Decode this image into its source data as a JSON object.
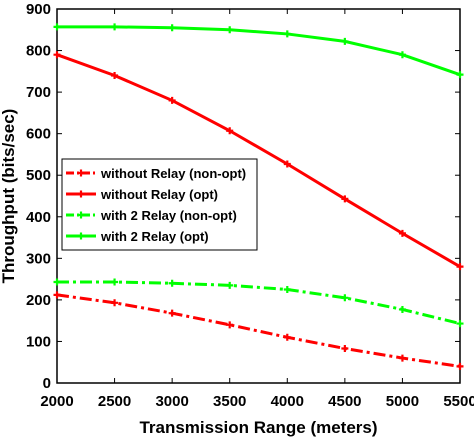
{
  "chart_data": {
    "type": "line",
    "xlabel": "Transmission Range (meters)",
    "ylabel": "Throughput (bits/sec)",
    "xlim": [
      2000,
      5500
    ],
    "ylim": [
      0,
      900
    ],
    "xticks": [
      "2000",
      "2500",
      "3000",
      "3500",
      "4000",
      "4500",
      "5000",
      "5500"
    ],
    "yticks": [
      "0",
      "100",
      "200",
      "300",
      "400",
      "500",
      "600",
      "700",
      "800",
      "900"
    ],
    "grid": false,
    "legend_position": "left",
    "x": [
      2000,
      2500,
      3000,
      3500,
      4000,
      4500,
      5000,
      5500
    ],
    "series": [
      {
        "name": "without Relay (non-opt)",
        "color": "#ff0000",
        "style": "dashdot",
        "values": [
          212,
          193,
          168,
          140,
          110,
          83,
          60,
          40
        ]
      },
      {
        "name": "without Relay (opt)",
        "color": "#ff0000",
        "style": "solid",
        "values": [
          790,
          740,
          680,
          607,
          527,
          443,
          360,
          280
        ]
      },
      {
        "name": "with 2 Relay (non-opt)",
        "color": "#00ff00",
        "style": "dashdot",
        "values": [
          243,
          243,
          240,
          235,
          225,
          205,
          177,
          143
        ]
      },
      {
        "name": "with 2 Relay (opt)",
        "color": "#00ff00",
        "style": "solid",
        "values": [
          857,
          857,
          855,
          850,
          840,
          822,
          790,
          742
        ]
      }
    ]
  }
}
